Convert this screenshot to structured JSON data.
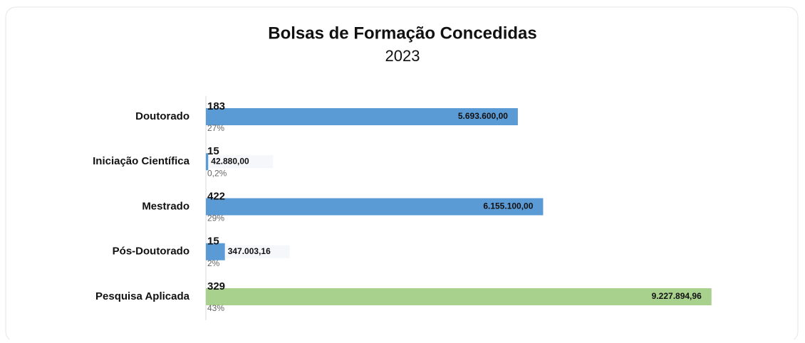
{
  "chart_data": {
    "type": "bar",
    "orientation": "horizontal",
    "title": "Bolsas de Formação Concedidas",
    "subtitle": "2023",
    "categories": [
      "Doutorado",
      "Iniciação Científica",
      "Mestrado",
      "Pós-Doutorado",
      "Pesquisa Aplicada"
    ],
    "values": [
      5693600,
      42880,
      6155100,
      347003.16,
      9227894.96
    ],
    "value_labels": [
      "5.693.600,00",
      "42.880,00",
      "6.155.100,00",
      "347.003,16",
      "9.227.894,96"
    ],
    "counts": [
      183,
      15,
      422,
      15,
      329
    ],
    "percentages": [
      27,
      0.2,
      29,
      2,
      43
    ],
    "percentage_labels": [
      "27%",
      "0,2%",
      "29%",
      "2%",
      "43%"
    ],
    "colors": [
      "#5b9bd5",
      "#5b9bd5",
      "#5b9bd5",
      "#5b9bd5",
      "#a9d18e"
    ],
    "xlim": [
      0,
      9400000
    ]
  }
}
